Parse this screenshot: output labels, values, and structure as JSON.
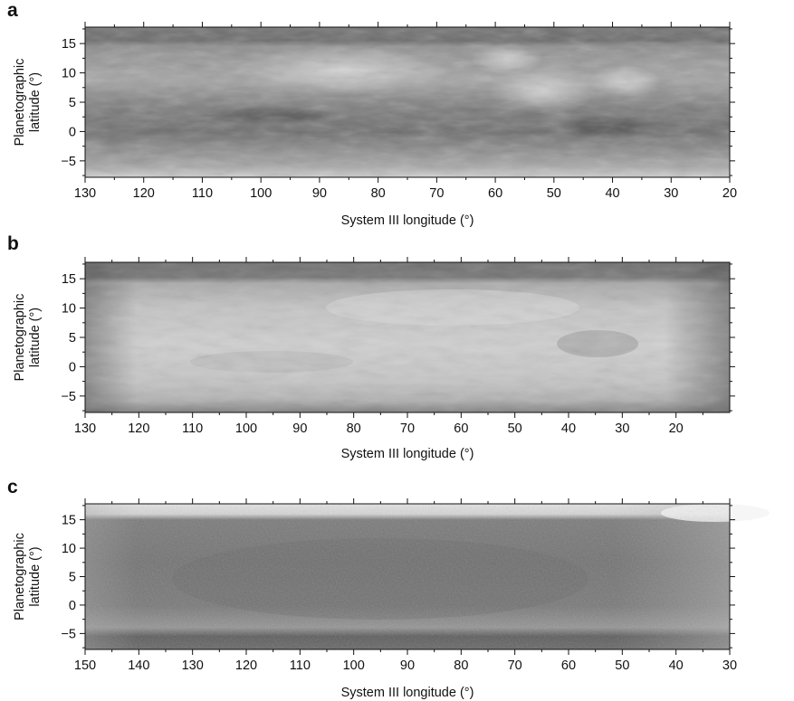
{
  "panels": [
    {
      "letter": "a",
      "ylabel_line1": "Planetographic",
      "ylabel_line2": "latitude (°)",
      "xlabel": "System III longitude (°)",
      "x_range": [
        130,
        20
      ],
      "y_range": [
        -7.8,
        17.8
      ],
      "x_ticks": [
        "130",
        "120",
        "110",
        "100",
        "90",
        "80",
        "70",
        "60",
        "50",
        "40",
        "30",
        "20"
      ],
      "y_ticks": [
        "15",
        "10",
        "5",
        "0",
        "−5"
      ],
      "colors": {
        "base": "#8d8d8d",
        "band_dark": "#5f5f5f",
        "band_light": "#bdbdbd"
      }
    },
    {
      "letter": "b",
      "ylabel_line1": "Planetographic",
      "ylabel_line2": "latitude (°)",
      "xlabel": "System III longitude (°)",
      "x_range": [
        130,
        10
      ],
      "y_range": [
        -7.8,
        17.8
      ],
      "x_ticks": [
        "130",
        "120",
        "110",
        "100",
        "90",
        "80",
        "70",
        "60",
        "50",
        "40",
        "30",
        "20"
      ],
      "y_ticks": [
        "15",
        "10",
        "5",
        "0",
        "−5"
      ],
      "colors": {
        "base": "#c9c9c9",
        "band_dark": "#6b6b6b",
        "band_light": "#dcdcdc"
      }
    },
    {
      "letter": "c",
      "ylabel_line1": "Planetographic",
      "ylabel_line2": "latitude (°)",
      "xlabel": "System III longitude (°)",
      "x_range": [
        150,
        30
      ],
      "y_range": [
        -7.8,
        17.8
      ],
      "x_ticks": [
        "150",
        "140",
        "130",
        "120",
        "110",
        "100",
        "90",
        "80",
        "70",
        "60",
        "50",
        "40",
        "30"
      ],
      "y_ticks": [
        "15",
        "10",
        "5",
        "0",
        "−5"
      ],
      "colors": {
        "base": "#7e7e7e",
        "band_dark": "#5a5a5a",
        "band_light": "#e8e8e8"
      }
    }
  ]
}
